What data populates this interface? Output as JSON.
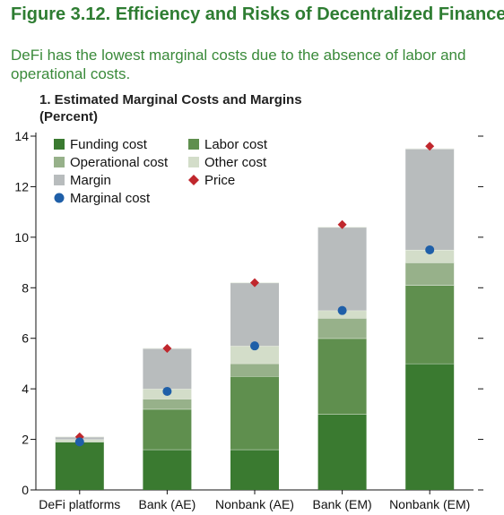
{
  "figure": {
    "title": "Figure 3.12. Efficiency and Risks of Decentralized Finance",
    "subtitle": "DeFi has the lowest marginal costs due to the absence of labor and operational costs."
  },
  "chart_data": {
    "type": "bar",
    "stacked": true,
    "title": "1. Estimated Marginal Costs and Margins",
    "ylabel": "(Percent)",
    "xlabel": "",
    "ylim": [
      0,
      14
    ],
    "yticks": [
      0,
      2,
      4,
      6,
      8,
      10,
      12,
      14
    ],
    "grid": false,
    "legend_position": "top-left",
    "categories": [
      "DeFi platforms",
      "Bank (AE)",
      "Nonbank (AE)",
      "Bank (EM)",
      "Nonbank (EM)"
    ],
    "series": [
      {
        "name": "Funding cost",
        "kind": "bar",
        "color": "#3a7a30",
        "values": [
          1.9,
          1.6,
          1.6,
          3.0,
          5.0
        ]
      },
      {
        "name": "Labor cost",
        "kind": "bar",
        "color": "#5f8f4e",
        "values": [
          0.0,
          1.6,
          2.9,
          3.0,
          3.1
        ]
      },
      {
        "name": "Operational cost",
        "kind": "bar",
        "color": "#97b18a",
        "values": [
          0.0,
          0.4,
          0.5,
          0.8,
          0.9
        ]
      },
      {
        "name": "Other cost",
        "kind": "bar",
        "color": "#d3ddc9",
        "values": [
          0.1,
          0.4,
          0.7,
          0.3,
          0.5
        ]
      },
      {
        "name": "Margin",
        "kind": "bar",
        "color": "#b8bcbd",
        "values": [
          0.1,
          1.6,
          2.5,
          3.3,
          4.0
        ]
      },
      {
        "name": "Price",
        "kind": "marker",
        "marker": "diamond",
        "color": "#c0272d",
        "values": [
          2.1,
          5.6,
          8.2,
          10.5,
          13.6
        ]
      },
      {
        "name": "Marginal cost",
        "kind": "marker",
        "marker": "circle",
        "color": "#1f5fa8",
        "values": [
          1.9,
          3.9,
          5.7,
          7.1,
          9.5
        ]
      }
    ],
    "legend_order": [
      "Funding cost",
      "Labor cost",
      "Operational cost",
      "Other cost",
      "Margin",
      "Price",
      "Marginal cost"
    ]
  }
}
